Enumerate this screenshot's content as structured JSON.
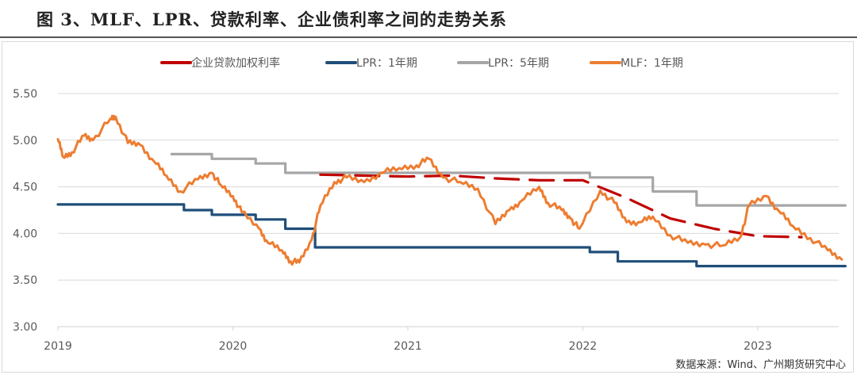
{
  "title": "图 3、MLF、LPR、贷款利率、企业债利率之间的走势关系",
  "source": "数据来源：Wind、广州期货研究中心",
  "colors": {
    "corp_loan": "#c00000",
    "lpr1": "#1f4e79",
    "lpr5": "#a6a6a6",
    "mlf": "#ed7d31",
    "grid": "#d9d9d9"
  },
  "chart_data": {
    "type": "line",
    "title": "图 3、MLF、LPR、贷款利率、企业债利率之间的走势关系",
    "xlabel": "",
    "ylabel": "",
    "ylim": [
      3.0,
      5.5
    ],
    "yticks": [
      "5.50",
      "5.00",
      "4.50",
      "4.00",
      "3.50",
      "3.00"
    ],
    "xticks": [
      "2019",
      "2020",
      "2021",
      "2022",
      "2023"
    ],
    "xlim": [
      2019.0,
      2023.5
    ],
    "grid": true,
    "legend_position": "top",
    "series": [
      {
        "name": "企业贷款加权利率",
        "style": "dashed",
        "x": [
          2020.5,
          2020.75,
          2021.0,
          2021.25,
          2021.5,
          2021.75,
          2022.0,
          2022.25,
          2022.5,
          2022.75,
          2023.0,
          2023.25
        ],
        "values": [
          4.63,
          4.62,
          4.61,
          4.62,
          4.59,
          4.57,
          4.57,
          4.38,
          4.16,
          4.05,
          3.97,
          3.96
        ]
      },
      {
        "name": "LPR：1年期",
        "style": "step",
        "x": [
          2019.0,
          2019.63,
          2019.72,
          2019.88,
          2020.13,
          2020.3,
          2020.47,
          2021.0,
          2021.95,
          2022.04,
          2022.2,
          2022.65,
          2023.0,
          2023.5
        ],
        "values": [
          4.31,
          4.31,
          4.25,
          4.2,
          4.15,
          4.05,
          3.85,
          3.85,
          3.85,
          3.8,
          3.7,
          3.65,
          3.65,
          3.65
        ]
      },
      {
        "name": "LPR：5年期",
        "style": "step",
        "x": [
          2019.65,
          2019.88,
          2020.13,
          2020.3,
          2020.47,
          2021.0,
          2022.0,
          2022.04,
          2022.4,
          2022.65,
          2023.0,
          2023.5
        ],
        "values": [
          4.85,
          4.8,
          4.75,
          4.65,
          4.65,
          4.65,
          4.65,
          4.6,
          4.45,
          4.3,
          4.3,
          4.3
        ]
      },
      {
        "name": "MLF：1年期",
        "style": "solid",
        "x": [
          2019.0,
          2019.03,
          2019.08,
          2019.15,
          2019.2,
          2019.3,
          2019.33,
          2019.4,
          2019.47,
          2019.55,
          2019.62,
          2019.7,
          2019.8,
          2019.88,
          2019.93,
          2020.0,
          2020.05,
          2020.15,
          2020.2,
          2020.28,
          2020.33,
          2020.38,
          2020.45,
          2020.5,
          2020.58,
          2020.65,
          2020.75,
          2020.85,
          2020.95,
          2021.05,
          2021.12,
          2021.2,
          2021.3,
          2021.4,
          2021.5,
          2021.58,
          2021.65,
          2021.75,
          2021.8,
          2021.88,
          2021.93,
          2021.98,
          2022.1,
          2022.18,
          2022.25,
          2022.33,
          2022.4,
          2022.5,
          2022.6,
          2022.7,
          2022.8,
          2022.9,
          2022.95,
          2023.05,
          2023.12,
          2023.2,
          2023.3,
          2023.4,
          2023.48
        ],
        "values": [
          5.01,
          4.82,
          4.87,
          5.05,
          5.0,
          5.23,
          5.25,
          4.97,
          4.95,
          4.77,
          4.62,
          4.45,
          4.58,
          4.65,
          4.52,
          4.4,
          4.23,
          4.05,
          3.9,
          3.82,
          3.7,
          3.69,
          3.93,
          4.3,
          4.55,
          4.6,
          4.55,
          4.65,
          4.7,
          4.73,
          4.8,
          4.6,
          4.55,
          4.48,
          4.1,
          4.25,
          4.35,
          4.5,
          4.33,
          4.25,
          4.16,
          4.05,
          4.46,
          4.33,
          4.12,
          4.12,
          4.18,
          3.98,
          3.9,
          3.88,
          3.87,
          3.96,
          4.3,
          4.4,
          4.24,
          4.08,
          3.95,
          3.82,
          3.72
        ]
      }
    ]
  },
  "legend": [
    {
      "label": "企业贷款加权利率",
      "color": "#c00000"
    },
    {
      "label": "LPR：1年期",
      "color": "#1f4e79"
    },
    {
      "label": "LPR：5年期",
      "color": "#a6a6a6"
    },
    {
      "label": "MLF：1年期",
      "color": "#ed7d31"
    }
  ]
}
